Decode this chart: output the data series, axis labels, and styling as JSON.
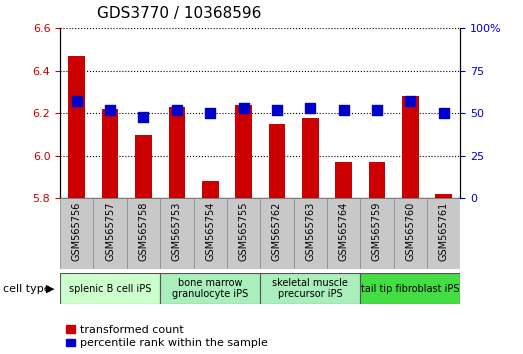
{
  "title": "GDS3770 / 10368596",
  "samples": [
    "GSM565756",
    "GSM565757",
    "GSM565758",
    "GSM565753",
    "GSM565754",
    "GSM565755",
    "GSM565762",
    "GSM565763",
    "GSM565764",
    "GSM565759",
    "GSM565760",
    "GSM565761"
  ],
  "transformed_count": [
    6.47,
    6.22,
    6.1,
    6.23,
    5.88,
    6.24,
    6.15,
    6.18,
    5.97,
    5.97,
    6.28,
    5.82
  ],
  "percentile_rank": [
    57,
    52,
    48,
    52,
    50,
    53,
    52,
    53,
    52,
    52,
    57,
    50
  ],
  "ylim_left": [
    5.8,
    6.6
  ],
  "ylim_right": [
    0,
    100
  ],
  "yticks_left": [
    5.8,
    6.0,
    6.2,
    6.4,
    6.6
  ],
  "yticks_right": [
    0,
    25,
    50,
    75,
    100
  ],
  "bar_color": "#cc0000",
  "dot_color": "#0000cc",
  "cell_types": [
    {
      "label": "splenic B cell iPS",
      "start": 0,
      "end": 3,
      "color": "#ccffcc"
    },
    {
      "label": "bone marrow\ngranulocyte iPS",
      "start": 3,
      "end": 6,
      "color": "#aaeebb"
    },
    {
      "label": "skeletal muscle\nprecursor iPS",
      "start": 6,
      "end": 9,
      "color": "#aaeebb"
    },
    {
      "label": "tail tip fibroblast iPS",
      "start": 9,
      "end": 12,
      "color": "#44dd44"
    }
  ],
  "xlabel_celltype": "cell type",
  "legend_transformed": "transformed count",
  "legend_percentile": "percentile rank within the sample",
  "bar_width": 0.5,
  "dot_size": 45,
  "bg_color": "#ffffff",
  "sample_box_color": "#c8c8c8",
  "title_fontsize": 11,
  "axis_fontsize": 8,
  "tick_label_fontsize": 7,
  "cell_type_fontsize": 7,
  "legend_fontsize": 8
}
